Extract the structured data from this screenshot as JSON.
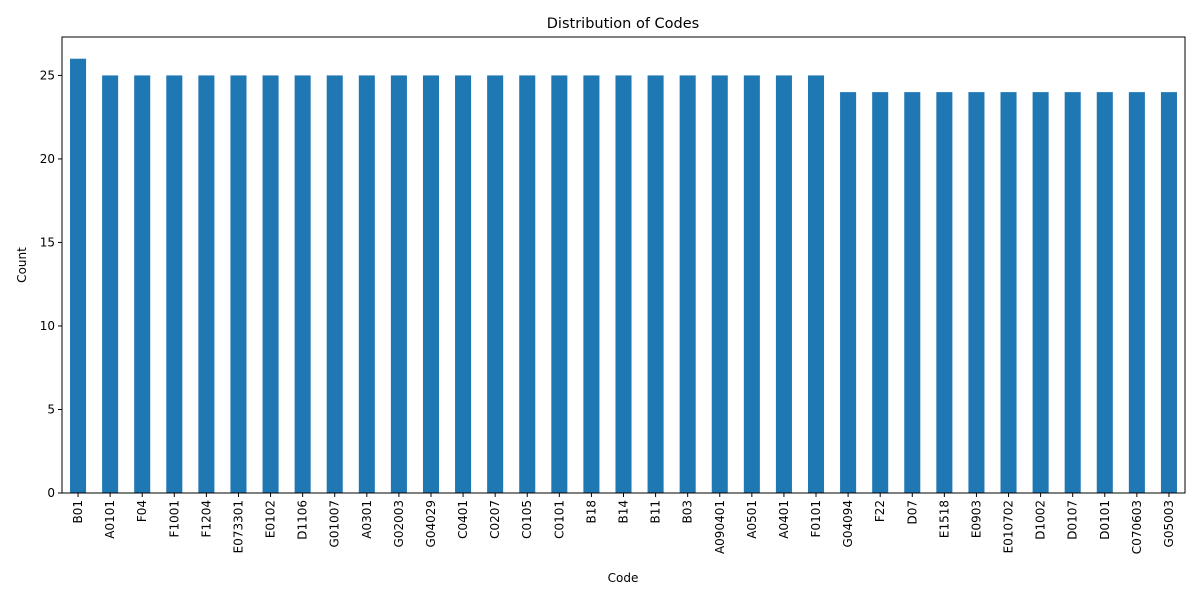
{
  "chart_data": {
    "type": "bar",
    "title": "Distribution of Codes",
    "xlabel": "Code",
    "ylabel": "Count",
    "ylim": [
      0,
      27.3
    ],
    "yticks": [
      0,
      5,
      10,
      15,
      20,
      25
    ],
    "bar_color": "#1f77b4",
    "grid": false,
    "categories": [
      "B01",
      "A0101",
      "F04",
      "F1001",
      "F1204",
      "E073301",
      "E0102",
      "D1106",
      "G01007",
      "A0301",
      "G02003",
      "G04029",
      "C0401",
      "C0207",
      "C0105",
      "C0101",
      "B18",
      "B14",
      "B11",
      "B03",
      "A090401",
      "A0501",
      "A0401",
      "F0101",
      "G04094",
      "F22",
      "D07",
      "E1518",
      "E0903",
      "E010702",
      "D1002",
      "D0107",
      "D0101",
      "C070603",
      "G05003"
    ],
    "values": [
      26,
      25,
      25,
      25,
      25,
      25,
      25,
      25,
      25,
      25,
      25,
      25,
      25,
      25,
      25,
      25,
      25,
      25,
      25,
      25,
      25,
      25,
      25,
      25,
      24,
      24,
      24,
      24,
      24,
      24,
      24,
      24,
      24,
      24,
      24
    ]
  }
}
